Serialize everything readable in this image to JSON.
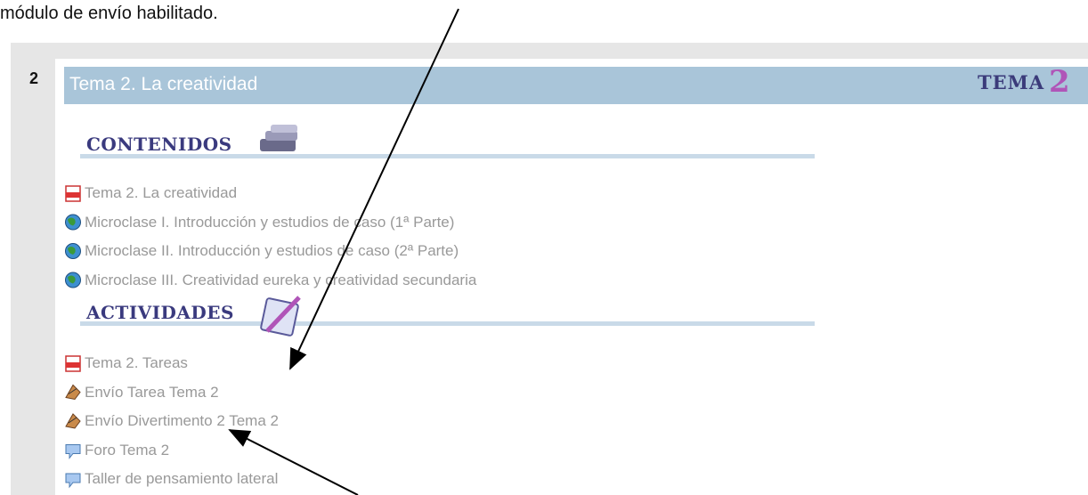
{
  "top_note": "módulo de envío habilitado.",
  "section": {
    "number": "2",
    "title": "Tema 2. La creatividad",
    "badge": {
      "word": "TEMA",
      "digit": "2"
    }
  },
  "contents": {
    "heading": "CONTENIDOS",
    "items": [
      "Tema 2. La creatividad",
      "Microclase I. Introducción y estudios de caso (1ª Parte)",
      "Microclase II. Introducción y estudios de caso (2ª Parte)",
      "Microclase III. Creatividad eureka y creatividad secundaria"
    ]
  },
  "activities": {
    "heading": "ACTIVIDADES",
    "items": [
      "Tema 2. Tareas",
      "Envío Tarea Tema 2",
      "Envío Divertimento 2 Tema 2",
      "Foro Tema 2",
      "Taller de pensamiento lateral"
    ]
  }
}
